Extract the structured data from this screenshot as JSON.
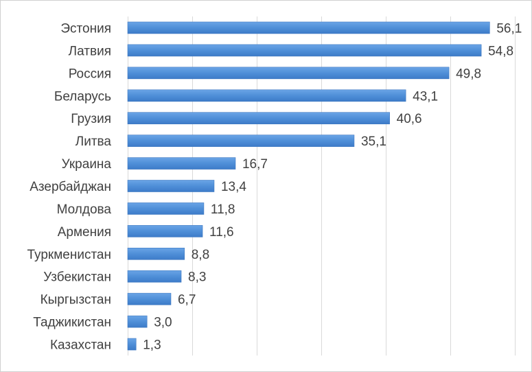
{
  "chart_data": {
    "type": "bar",
    "orientation": "horizontal",
    "categories": [
      "Эстония",
      "Латвия",
      "Россия",
      "Беларусь",
      "Грузия",
      "Литва",
      "Украина",
      "Азербайджан",
      "Молдова",
      "Армения",
      "Туркменистан",
      "Узбекистан",
      "Кыргызстан",
      "Таджикистан",
      "Казахстан"
    ],
    "values": [
      56.1,
      54.8,
      49.8,
      43.1,
      40.6,
      35.1,
      16.7,
      13.4,
      11.8,
      11.6,
      8.8,
      8.3,
      6.7,
      3.0,
      1.3
    ],
    "value_labels": [
      "56,1",
      "54,8",
      "49,8",
      "43,1",
      "40,6",
      "35,1",
      "16,7",
      "13,4",
      "11,8",
      "11,6",
      "8,8",
      "8,3",
      "6,7",
      "3,0",
      "1,3"
    ],
    "xlim": [
      0,
      60
    ],
    "grid": "vertical",
    "legend": "none",
    "title": "",
    "xlabel": "",
    "ylabel": "",
    "colors": {
      "bar": "#4f8fd8",
      "bar_edge": "#3f78c0",
      "grid": "#d9d9d9",
      "text": "#404040"
    }
  }
}
